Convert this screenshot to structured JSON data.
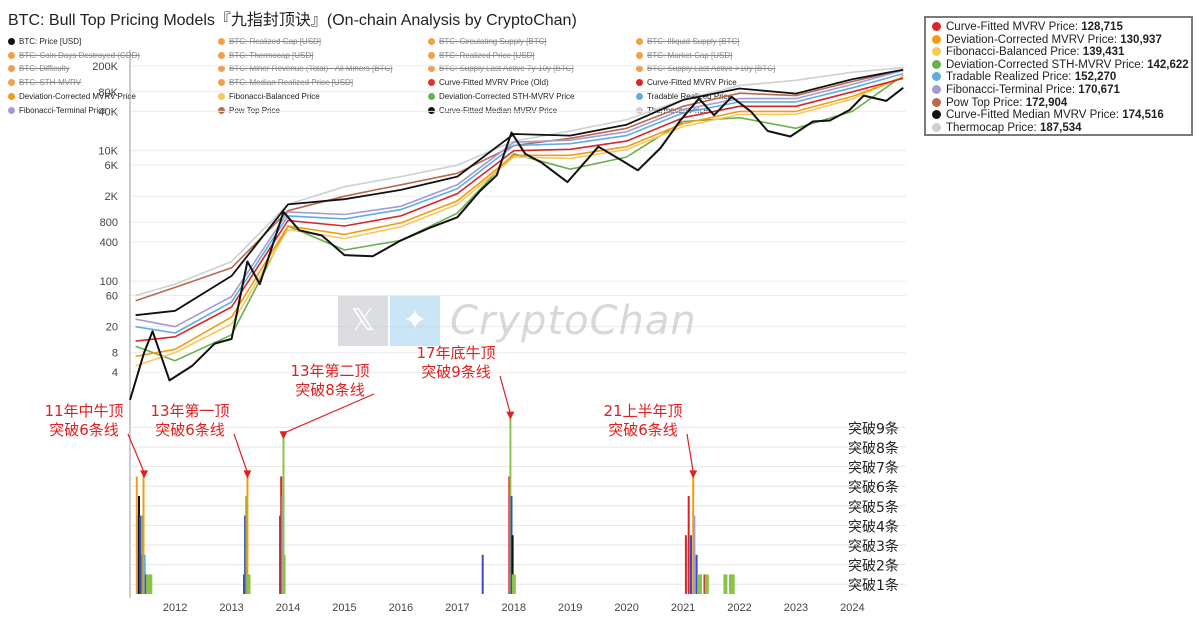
{
  "title": "BTC: Bull Top Pricing Models『九指封顶诀』(On-chain Analysis by CryptoChan)",
  "watermark": {
    "icon_x": "x-logo-icon",
    "icon_bird": "twitter-bird-icon",
    "text": "CryptoChan"
  },
  "legend": [
    {
      "label": "BTC: Price [USD]",
      "color": "#111111",
      "struck": false
    },
    {
      "label": "BTC: Realized Cap [USD]",
      "color": "#f0a04b",
      "struck": true
    },
    {
      "label": "BTC: Circulating Supply [BTC]",
      "color": "#f0a04b",
      "struck": true
    },
    {
      "label": "BTC: Illiquid Supply [BTC]",
      "color": "#f0a04b",
      "struck": true
    },
    {
      "label": "BTC: Coin Days Destroyed (CDD)",
      "color": "#f0a04b",
      "struck": true
    },
    {
      "label": "BTC: Thermocap [USD]",
      "color": "#f0a04b",
      "struck": true
    },
    {
      "label": "BTC: Realized Price [USD]",
      "color": "#f0a04b",
      "struck": true
    },
    {
      "label": "BTC: Market Cap [USD]",
      "color": "#f0a04b",
      "struck": true
    },
    {
      "label": "BTC: Difficulty",
      "color": "#f0a04b",
      "struck": true
    },
    {
      "label": "BTC: Miner Revenue (Total) - All Miners [BTC]",
      "color": "#f0a04b",
      "struck": true
    },
    {
      "label": "BTC: Supply Last Active 7y-10y [BTC]",
      "color": "#f0a04b",
      "struck": true
    },
    {
      "label": "BTC: Supply Last Active >10y [BTC]",
      "color": "#f0a04b",
      "struck": true
    },
    {
      "label": "BTC: STH-MVRV",
      "color": "#f0a04b",
      "struck": true
    },
    {
      "label": "BTC: Median Realized Price [USD]",
      "color": "#f0a04b",
      "struck": true
    },
    {
      "label": "Curve-Fitted MVRV Price (Old)",
      "color": "#e0302e",
      "struck": false
    },
    {
      "label": "Curve-Fitted MVRV Price",
      "color": "#d62728",
      "struck": false
    },
    {
      "label": "Deviation-Corrected MVRV Price",
      "color": "#f39c12",
      "struck": false
    },
    {
      "label": "Fibonacci-Balanced Price",
      "color": "#f7c85a",
      "struck": false
    },
    {
      "label": "Deviation-Corrected STH-MVRV Price",
      "color": "#6ab04c",
      "struck": false
    },
    {
      "label": "Tradable Realized Price",
      "color": "#5dade2",
      "struck": false
    },
    {
      "label": "Fibonacci-Terminal Price",
      "color": "#a29bd4",
      "struck": false
    },
    {
      "label": "Pow Top Price",
      "color": "#b86a50",
      "struck": false
    },
    {
      "label": "Curve-Fitted Median MVRV Price",
      "color": "#111111",
      "struck": false
    },
    {
      "label": "Thermocap Price",
      "color": "#cfcfcf",
      "struck": false
    }
  ],
  "price_box": [
    {
      "label": "Curve-Fitted MVRV Price:",
      "value": "128,715",
      "color": "#d62728"
    },
    {
      "label": "Deviation-Corrected MVRV Price:",
      "value": "130,937",
      "color": "#f39c12"
    },
    {
      "label": "Fibonacci-Balanced Price:",
      "value": "139,431",
      "color": "#f7c85a"
    },
    {
      "label": "Deviation-Corrected STH-MVRV Price:",
      "value": "142,622",
      "color": "#6ab04c"
    },
    {
      "label": "Tradable Realized Price:",
      "value": "152,270",
      "color": "#5dade2"
    },
    {
      "label": "Fibonacci-Terminal Price:",
      "value": "170,671",
      "color": "#a29bd4"
    },
    {
      "label": "Pow Top Price:",
      "value": "172,904",
      "color": "#b86a50"
    },
    {
      "label": "Curve-Fitted Median MVRV Price:",
      "value": "174,516",
      "color": "#111111"
    },
    {
      "label": "Thermocap Price:",
      "value": "187,534",
      "color": "#cfcfcf"
    }
  ],
  "chart_data": [
    {
      "type": "line",
      "scale": "log",
      "y_ticks": [
        "4",
        "8",
        "20",
        "60",
        "100",
        "400",
        "800",
        "2K",
        "6K",
        "10K",
        "40K",
        "80K",
        "200K"
      ],
      "y_tick_values": [
        4,
        8,
        20,
        60,
        100,
        400,
        800,
        2000,
        6000,
        10000,
        40000,
        80000,
        200000
      ],
      "ylim": [
        1.5,
        350000
      ],
      "xlim": [
        2011.2,
        2024.95
      ],
      "series": [
        {
          "name": "BTC: Price [USD]",
          "color": "#111111",
          "x": [
            2011.2,
            2011.45,
            2011.6,
            2011.9,
            2012.3,
            2012.7,
            2013.0,
            2013.28,
            2013.5,
            2013.92,
            2014.2,
            2014.6,
            2015.0,
            2015.5,
            2016.0,
            2016.5,
            2017.0,
            2017.4,
            2017.7,
            2017.96,
            2018.2,
            2018.5,
            2018.95,
            2019.5,
            2019.9,
            2020.2,
            2020.6,
            2020.95,
            2021.28,
            2021.55,
            2021.86,
            2022.2,
            2022.5,
            2022.9,
            2023.3,
            2023.6,
            2023.95,
            2024.2,
            2024.6,
            2024.9
          ],
          "y": [
            1,
            8,
            17,
            3,
            5,
            11,
            13,
            200,
            90,
            1150,
            600,
            500,
            250,
            240,
            420,
            650,
            950,
            2400,
            4200,
            19000,
            9000,
            6500,
            3300,
            11500,
            7200,
            5000,
            11000,
            29000,
            63000,
            35000,
            67000,
            40000,
            20000,
            16500,
            28000,
            29000,
            42000,
            70000,
            58000,
            92000
          ]
        },
        {
          "name": "Curve-Fitted MVRV Price",
          "color": "#d62728",
          "x": [
            2011.3,
            2012.0,
            2013.0,
            2014.0,
            2015.0,
            2016.0,
            2017.0,
            2018.0,
            2019.0,
            2020.0,
            2021.0,
            2022.0,
            2023.0,
            2024.0,
            2024.9
          ],
          "y": [
            12,
            14,
            40,
            850,
            700,
            1000,
            2200,
            10000,
            10500,
            14000,
            32000,
            48000,
            48000,
            80000,
            128715
          ]
        },
        {
          "name": "Deviation-Corrected MVRV Price",
          "color": "#f39c12",
          "x": [
            2011.3,
            2012.0,
            2013.0,
            2014.0,
            2015.0,
            2016.0,
            2017.0,
            2018.0,
            2019.0,
            2020.0,
            2021.0,
            2022.0,
            2023.0,
            2024.0,
            2024.9
          ],
          "y": [
            7,
            9,
            28,
            700,
            520,
            780,
            1700,
            8500,
            8500,
            11500,
            26000,
            40000,
            40000,
            68000,
            130937
          ]
        },
        {
          "name": "Fibonacci-Balanced Price",
          "color": "#f7c85a",
          "x": [
            2011.3,
            2012.0,
            2013.0,
            2014.0,
            2015.0,
            2016.0,
            2017.0,
            2018.0,
            2019.0,
            2020.0,
            2021.0,
            2022.0,
            2023.0,
            2024.0,
            2024.9
          ],
          "y": [
            5,
            8,
            22,
            620,
            450,
            680,
            1500,
            8000,
            7600,
            10400,
            23500,
            36000,
            36000,
            62000,
            139431
          ]
        },
        {
          "name": "Deviation-Corrected STH-MVRV Price",
          "color": "#6ab04c",
          "x": [
            2011.3,
            2012.0,
            2013.0,
            2014.0,
            2015.0,
            2016.0,
            2017.0,
            2018.0,
            2019.0,
            2020.0,
            2021.0,
            2022.0,
            2023.0,
            2024.0,
            2024.9
          ],
          "y": [
            10,
            6,
            15,
            700,
            300,
            420,
            1100,
            9000,
            5200,
            8000,
            28000,
            32000,
            22000,
            40000,
            142622
          ]
        },
        {
          "name": "Tradable Realized Price",
          "color": "#5dade2",
          "x": [
            2011.3,
            2012.0,
            2013.0,
            2014.0,
            2015.0,
            2016.0,
            2017.0,
            2018.0,
            2019.0,
            2020.0,
            2021.0,
            2022.0,
            2023.0,
            2024.0,
            2024.9
          ],
          "y": [
            20,
            16,
            48,
            1000,
            900,
            1250,
            2600,
            12000,
            12800,
            17000,
            38000,
            56000,
            56000,
            92000,
            152270
          ]
        },
        {
          "name": "Fibonacci-Terminal Price",
          "color": "#a29bd4",
          "x": [
            2011.3,
            2012.0,
            2013.0,
            2014.0,
            2015.0,
            2016.0,
            2017.0,
            2018.0,
            2019.0,
            2020.0,
            2021.0,
            2022.0,
            2023.0,
            2024.0,
            2024.9
          ],
          "y": [
            26,
            20,
            58,
            1150,
            1050,
            1400,
            3000,
            13500,
            14500,
            19500,
            43000,
            63000,
            63000,
            104000,
            170671
          ]
        },
        {
          "name": "Pow Top Price",
          "color": "#b86a50",
          "x": [
            2011.3,
            2012.0,
            2013.0,
            2014.0,
            2015.0,
            2016.0,
            2017.0,
            2018.0,
            2019.0,
            2020.0,
            2021.0,
            2022.0,
            2023.0,
            2024.0,
            2024.9
          ],
          "y": [
            50,
            80,
            160,
            1200,
            2000,
            3000,
            4500,
            12000,
            15500,
            22000,
            48000,
            76000,
            70000,
            115000,
            172904
          ]
        },
        {
          "name": "Curve-Fitted Median MVRV Price",
          "color": "#111111",
          "x": [
            2011.3,
            2012.0,
            2013.0,
            2014.0,
            2015.0,
            2016.0,
            2017.0,
            2018.0,
            2019.0,
            2020.0,
            2021.0,
            2022.0,
            2023.0,
            2024.0,
            2024.9
          ],
          "y": [
            30,
            35,
            120,
            1500,
            1800,
            2500,
            4000,
            18000,
            17000,
            25000,
            60000,
            90000,
            75000,
            125000,
            174516
          ]
        },
        {
          "name": "Thermocap Price",
          "color": "#cfcfcf",
          "x": [
            2011.3,
            2012.0,
            2013.0,
            2014.0,
            2015.0,
            2016.0,
            2017.0,
            2018.0,
            2019.0,
            2020.0,
            2021.0,
            2022.0,
            2023.0,
            2024.0,
            2024.9
          ],
          "y": [
            60,
            90,
            200,
            1500,
            2800,
            4000,
            6000,
            14000,
            20000,
            30000,
            60000,
            100000,
            120000,
            160000,
            187534
          ]
        }
      ]
    },
    {
      "type": "bar",
      "y_ticks": [
        "突破1条",
        "突破2条",
        "突破3条",
        "突破4条",
        "突破5条",
        "突破6条",
        "突破7条",
        "突破8条",
        "突破9条"
      ],
      "x_ticks": [
        "2012",
        "2013",
        "2014",
        "2015",
        "2016",
        "2017",
        "2018",
        "2019",
        "2020",
        "2021",
        "2022",
        "2023",
        "2024"
      ],
      "x_tick_values": [
        2012,
        2013,
        2014,
        2015,
        2016,
        2017,
        2018,
        2019,
        2020,
        2021,
        2022,
        2023,
        2024
      ],
      "xlim": [
        2011.2,
        2024.95
      ],
      "ylim": [
        0,
        9.7
      ],
      "bars": [
        {
          "x": 2011.32,
          "value": 6,
          "color": "#f39c12"
        },
        {
          "x": 2011.34,
          "value": 4,
          "color": "#5dade2"
        },
        {
          "x": 2011.36,
          "value": 5,
          "color": "#111111"
        },
        {
          "x": 2011.38,
          "value": 4,
          "color": "#3b4cc0"
        },
        {
          "x": 2011.4,
          "value": 2,
          "color": "#3b4cc0"
        },
        {
          "x": 2011.42,
          "value": 4,
          "color": "#6ab04c"
        },
        {
          "x": 2011.44,
          "value": 6,
          "color": "#f39c12"
        },
        {
          "x": 2011.46,
          "value": 2,
          "color": "#5dade2"
        },
        {
          "x": 2011.48,
          "value": 1,
          "color": "#d62728"
        },
        {
          "x": 2011.52,
          "value": 1,
          "color": "#8bc34a"
        },
        {
          "x": 2011.56,
          "value": 1,
          "color": "#8bc34a"
        },
        {
          "x": 2013.22,
          "value": 1,
          "color": "#d62728"
        },
        {
          "x": 2013.24,
          "value": 4,
          "color": "#3b4cc0"
        },
        {
          "x": 2013.26,
          "value": 5,
          "color": "#6ab04c"
        },
        {
          "x": 2013.28,
          "value": 6,
          "color": "#f39c12"
        },
        {
          "x": 2013.3,
          "value": 1,
          "color": "#8bc34a"
        },
        {
          "x": 2013.86,
          "value": 4,
          "color": "#3b4cc0"
        },
        {
          "x": 2013.88,
          "value": 6,
          "color": "#d62728"
        },
        {
          "x": 2013.9,
          "value": 5,
          "color": "#a29bd4"
        },
        {
          "x": 2013.92,
          "value": 8,
          "color": "#8bc34a"
        },
        {
          "x": 2013.94,
          "value": 2,
          "color": "#8bc34a"
        },
        {
          "x": 2017.45,
          "value": 2,
          "color": "#3b4cc0"
        },
        {
          "x": 2017.92,
          "value": 6,
          "color": "#d62728"
        },
        {
          "x": 2017.94,
          "value": 9,
          "color": "#8bc34a"
        },
        {
          "x": 2017.96,
          "value": 5,
          "color": "#3b4cc0"
        },
        {
          "x": 2017.98,
          "value": 3,
          "color": "#111111"
        },
        {
          "x": 2018.0,
          "value": 1,
          "color": "#8bc34a"
        },
        {
          "x": 2021.05,
          "value": 3,
          "color": "#d62728"
        },
        {
          "x": 2021.1,
          "value": 5,
          "color": "#d62728"
        },
        {
          "x": 2021.14,
          "value": 3,
          "color": "#3b4cc0"
        },
        {
          "x": 2021.18,
          "value": 6,
          "color": "#f39c12"
        },
        {
          "x": 2021.2,
          "value": 4,
          "color": "#a29bd4"
        },
        {
          "x": 2021.24,
          "value": 2,
          "color": "#3b4cc0"
        },
        {
          "x": 2021.3,
          "value": 1,
          "color": "#8bc34a"
        },
        {
          "x": 2021.38,
          "value": 1,
          "color": "#d62728"
        },
        {
          "x": 2021.42,
          "value": 1,
          "color": "#8bc34a"
        },
        {
          "x": 2021.75,
          "value": 1,
          "color": "#8bc34a"
        },
        {
          "x": 2021.85,
          "value": 1,
          "color": "#8bc34a"
        },
        {
          "x": 2021.88,
          "value": 1,
          "color": "#8bc34a"
        }
      ]
    }
  ],
  "annotations": [
    {
      "line1": "11年中牛顶",
      "line2": "突破6条线",
      "x": 2011.45,
      "level": 6
    },
    {
      "line1": "13年第一顶",
      "line2": "突破6条线",
      "x": 2013.28,
      "level": 6
    },
    {
      "line1": "13年第二顶",
      "line2": "突破8条线",
      "x": 2013.92,
      "level": 8
    },
    {
      "line1": "17年底牛顶",
      "line2": "突破9条线",
      "x": 2017.94,
      "level": 9
    },
    {
      "line1": "21上半年顶",
      "line2": "突破6条线",
      "x": 2021.18,
      "level": 6
    }
  ]
}
